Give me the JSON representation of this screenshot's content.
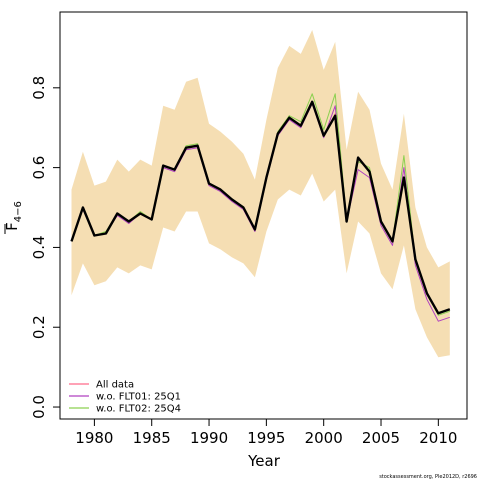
{
  "chart_data": {
    "type": "line",
    "xlabel": "Year",
    "ylabel": {
      "main": "F",
      "subscript": "4−6"
    },
    "xlim": [
      1977,
      2012.5
    ],
    "ylim": [
      -0.03,
      0.99
    ],
    "x_ticks": [
      "1980",
      "1985",
      "1990",
      "1995",
      "2000",
      "2005",
      "2010"
    ],
    "y_ticks": [
      "0.0",
      "0.2",
      "0.4",
      "0.6",
      "0.8"
    ],
    "legend_position": "bottom-left",
    "credit": "stockassessment.org, Ple2012D, r2696",
    "colors": {
      "band": "#f5deb3",
      "all_data": "#ff6b8b",
      "wo_flt01": "#b040c0",
      "wo_flt02": "#8cd050",
      "base": "#000000"
    },
    "x": [
      1978,
      1979,
      1980,
      1981,
      1982,
      1983,
      1984,
      1985,
      1986,
      1987,
      1988,
      1989,
      1990,
      1991,
      1992,
      1993,
      1994,
      1995,
      1996,
      1997,
      1998,
      1999,
      2000,
      2001,
      2002,
      2003,
      2004,
      2005,
      2006,
      2007,
      2008,
      2009,
      2010,
      2011
    ],
    "band": {
      "lower": [
        0.28,
        0.36,
        0.305,
        0.315,
        0.35,
        0.335,
        0.355,
        0.345,
        0.45,
        0.44,
        0.49,
        0.49,
        0.41,
        0.395,
        0.375,
        0.36,
        0.325,
        0.44,
        0.52,
        0.545,
        0.53,
        0.585,
        0.515,
        0.545,
        0.335,
        0.465,
        0.435,
        0.335,
        0.295,
        0.405,
        0.245,
        0.175,
        0.125,
        0.13
      ],
      "upper": [
        0.545,
        0.64,
        0.555,
        0.565,
        0.62,
        0.59,
        0.62,
        0.605,
        0.755,
        0.745,
        0.815,
        0.825,
        0.71,
        0.69,
        0.665,
        0.635,
        0.57,
        0.72,
        0.85,
        0.905,
        0.885,
        0.945,
        0.845,
        0.915,
        0.645,
        0.79,
        0.745,
        0.61,
        0.545,
        0.735,
        0.5,
        0.4,
        0.35,
        0.365
      ]
    },
    "series": [
      {
        "name": "All data",
        "values": [
          0.415,
          0.5,
          0.43,
          0.435,
          0.485,
          0.465,
          0.485,
          0.47,
          0.605,
          0.595,
          0.65,
          0.655,
          0.56,
          0.545,
          0.52,
          0.5,
          0.445,
          0.575,
          0.685,
          0.725,
          0.705,
          0.765,
          0.68,
          0.735,
          0.465,
          0.625,
          0.59,
          0.465,
          0.415,
          0.575,
          0.37,
          0.285,
          0.235,
          0.245
        ]
      },
      {
        "name": "w.o. FLT01: 25Q1",
        "values": [
          0.415,
          0.495,
          0.43,
          0.435,
          0.48,
          0.46,
          0.485,
          0.47,
          0.6,
          0.59,
          0.645,
          0.65,
          0.555,
          0.54,
          0.515,
          0.495,
          0.44,
          0.57,
          0.68,
          0.72,
          0.7,
          0.76,
          0.675,
          0.755,
          0.465,
          0.595,
          0.575,
          0.455,
          0.405,
          0.6,
          0.355,
          0.27,
          0.215,
          0.225
        ]
      },
      {
        "name": "w.o. FLT02: 25Q4",
        "values": [
          0.415,
          0.5,
          0.43,
          0.44,
          0.485,
          0.465,
          0.49,
          0.47,
          0.605,
          0.595,
          0.655,
          0.66,
          0.56,
          0.545,
          0.52,
          0.5,
          0.445,
          0.575,
          0.69,
          0.73,
          0.715,
          0.785,
          0.695,
          0.785,
          0.47,
          0.615,
          0.6,
          0.465,
          0.415,
          0.63,
          0.37,
          0.285,
          0.23,
          0.24
        ]
      },
      {
        "name": "",
        "values": [
          0.415,
          0.5,
          0.43,
          0.435,
          0.485,
          0.465,
          0.485,
          0.47,
          0.605,
          0.595,
          0.65,
          0.655,
          0.56,
          0.545,
          0.52,
          0.5,
          0.445,
          0.575,
          0.685,
          0.725,
          0.705,
          0.765,
          0.68,
          0.73,
          0.465,
          0.625,
          0.59,
          0.465,
          0.415,
          0.575,
          0.37,
          0.285,
          0.235,
          0.245
        ]
      }
    ]
  }
}
